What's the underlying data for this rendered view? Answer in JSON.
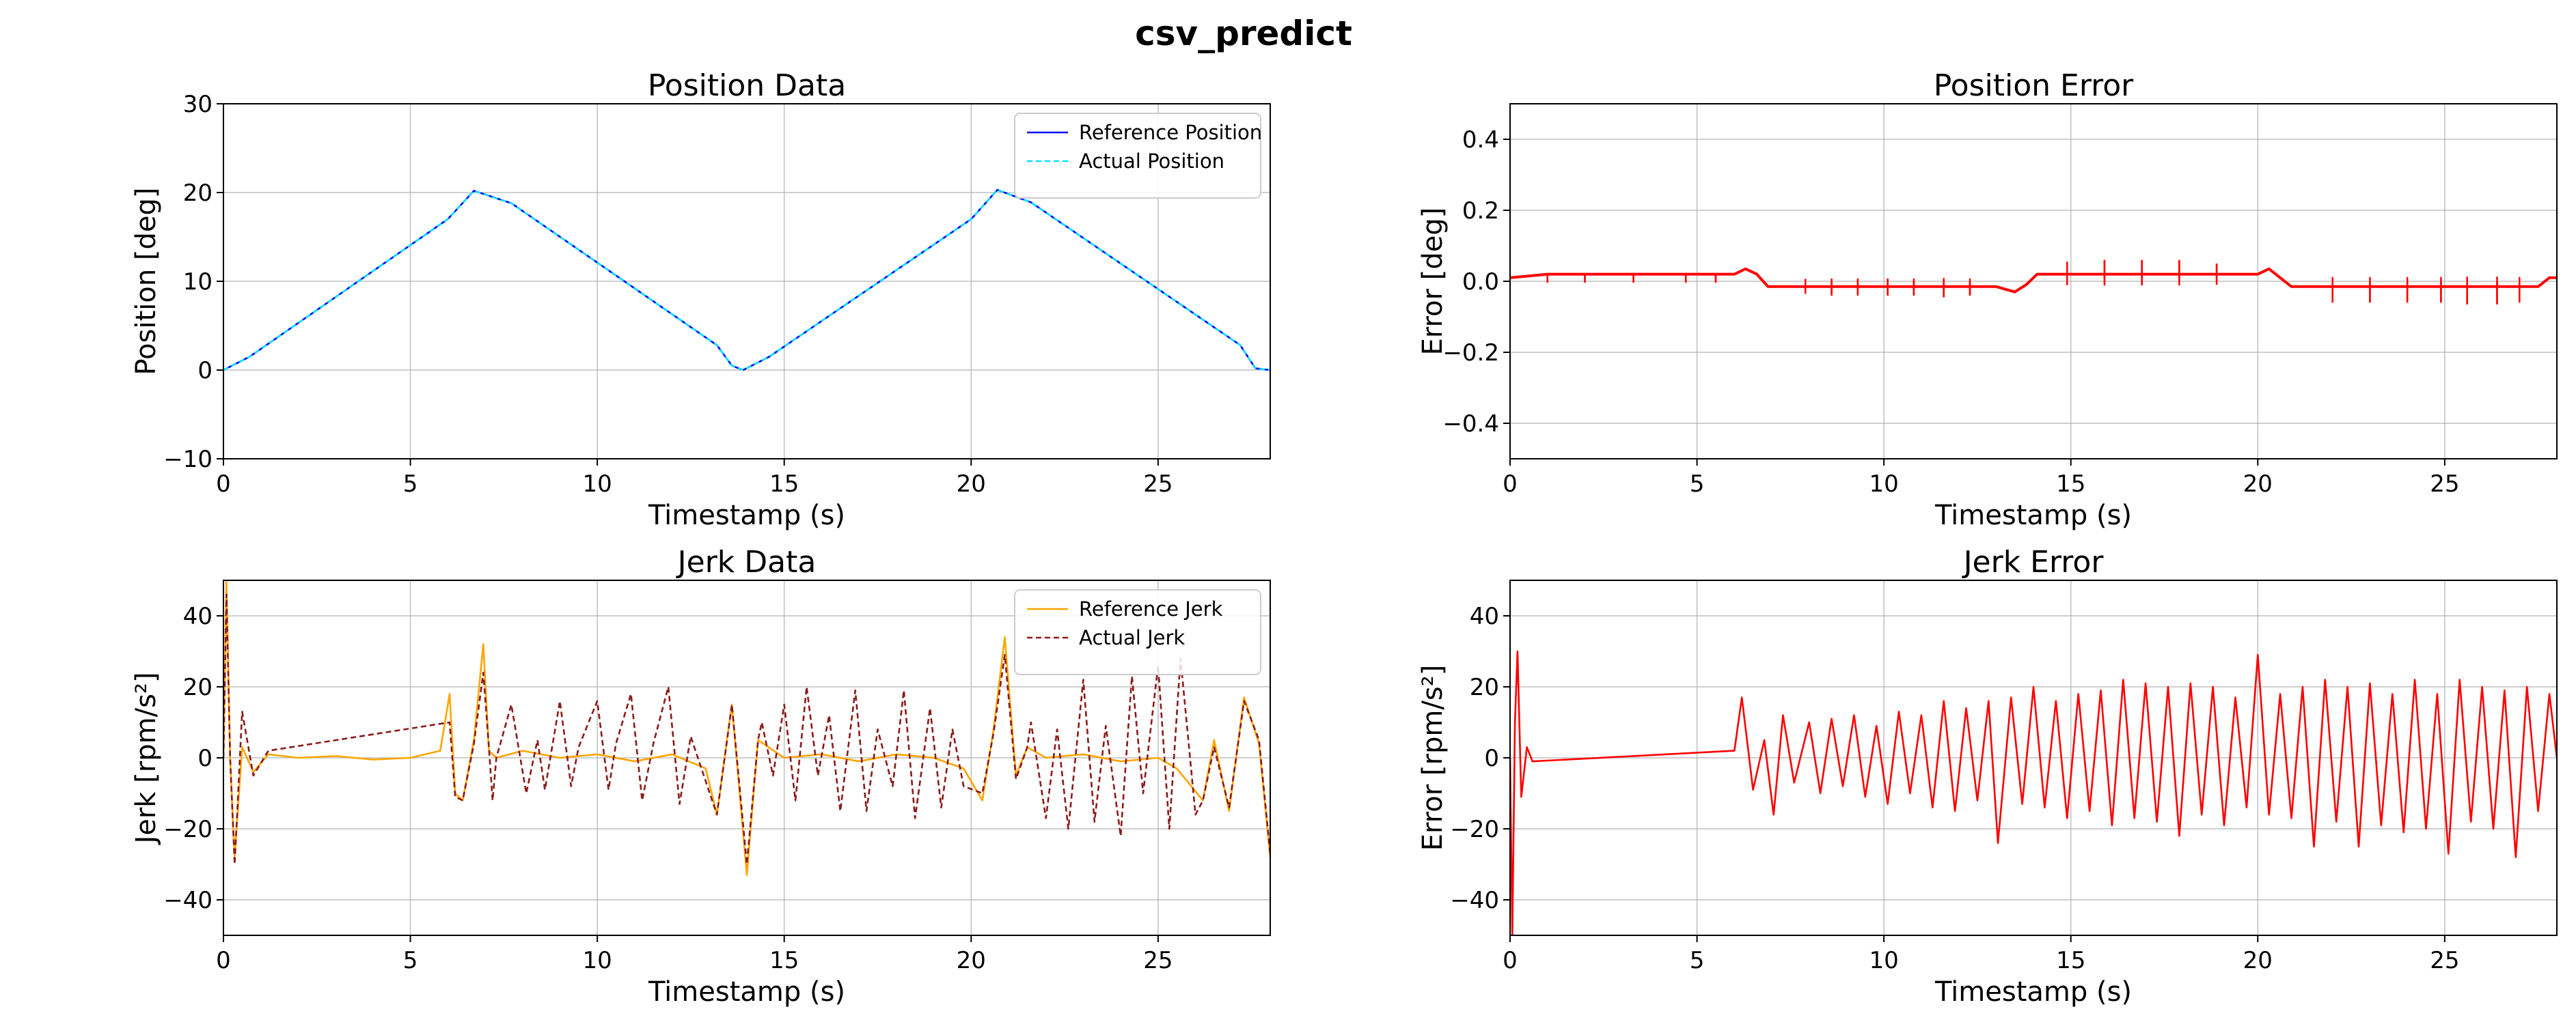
{
  "suptitle": "csv_predict",
  "chart_data": [
    {
      "id": "position-data",
      "type": "line",
      "title": "Position Data",
      "xlabel": "Timestamp (s)",
      "ylabel": "Position [deg]",
      "xlim": [
        0,
        28
      ],
      "ylim": [
        -10,
        30
      ],
      "xticks": [
        0,
        5,
        10,
        15,
        20,
        25
      ],
      "yticks": [
        -10,
        0,
        10,
        20,
        30
      ],
      "grid": true,
      "legend": "top-right",
      "series": [
        {
          "name": "Reference Position",
          "color": "#0000ff",
          "style": "solid",
          "x": [
            0,
            0.7,
            6,
            6.7,
            7.7,
            13.2,
            13.6,
            13.9,
            14.6,
            20,
            20.7,
            21.6,
            27.2,
            27.6,
            28
          ],
          "y": [
            0,
            1.5,
            17,
            20.2,
            18.8,
            2.8,
            0.5,
            0,
            1.5,
            17,
            20.3,
            18.9,
            2.8,
            0.2,
            0
          ]
        },
        {
          "name": "Actual Position",
          "color": "#00e5ff",
          "style": "dashed",
          "x": [
            0,
            0.7,
            6,
            6.7,
            7.7,
            13.2,
            13.6,
            13.9,
            14.6,
            20,
            20.7,
            21.6,
            27.2,
            27.6,
            28
          ],
          "y": [
            0,
            1.5,
            17,
            20.2,
            18.8,
            2.8,
            0.5,
            0,
            1.5,
            17,
            20.3,
            18.9,
            2.8,
            0.2,
            0
          ]
        }
      ]
    },
    {
      "id": "position-error",
      "type": "line",
      "title": "Position Error",
      "xlabel": "Timestamp (s)",
      "ylabel": "Error [deg]",
      "xlim": [
        0,
        28
      ],
      "ylim": [
        -0.5,
        0.5
      ],
      "xticks": [
        0,
        5,
        10,
        15,
        20,
        25
      ],
      "yticks": [
        -0.4,
        -0.2,
        0.0,
        0.2,
        0.4
      ],
      "grid": true,
      "legend": "none",
      "series": [
        {
          "color": "#ff0000",
          "style": "solid",
          "x": [
            0,
            0.5,
            1,
            6,
            6.3,
            6.6,
            6.9,
            7.2,
            13,
            13.5,
            13.8,
            14.1,
            20,
            20.3,
            20.6,
            20.9,
            27.5,
            27.8,
            28
          ],
          "y": [
            0.01,
            0.015,
            0.02,
            0.02,
            0.035,
            0.02,
            -0.015,
            -0.015,
            -0.015,
            -0.03,
            -0.01,
            0.02,
            0.02,
            0.035,
            0.01,
            -0.015,
            -0.015,
            0.01,
            0.01
          ],
          "spikes_x": [
            1,
            2,
            3.3,
            4.7,
            5.5,
            7.9,
            8.6,
            9.3,
            10.1,
            10.8,
            11.6,
            12.3,
            14.9,
            15.9,
            16.9,
            17.9,
            18.9,
            22,
            23,
            24,
            24.9,
            25.6,
            26.4,
            27
          ],
          "spikes_y": [
            0.02,
            0.02,
            0.02,
            0.02,
            0.02,
            -0.035,
            -0.04,
            -0.04,
            -0.04,
            -0.04,
            -0.045,
            -0.04,
            0.055,
            0.06,
            0.06,
            0.06,
            0.05,
            -0.06,
            -0.06,
            -0.06,
            -0.06,
            -0.065,
            -0.065,
            -0.06
          ]
        }
      ]
    },
    {
      "id": "jerk-data",
      "type": "line",
      "title": "Jerk Data",
      "xlabel": "Timestamp (s)",
      "ylabel": "Jerk [rpm/s²]",
      "xlim": [
        0,
        28
      ],
      "ylim": [
        -50,
        50
      ],
      "xticks": [
        0,
        5,
        10,
        15,
        20,
        25
      ],
      "yticks": [
        -40,
        -20,
        0,
        20,
        40
      ],
      "grid": true,
      "legend": "top-right",
      "series": [
        {
          "name": "Reference Jerk",
          "color": "#ffa500",
          "style": "solid",
          "x": [
            0,
            0.08,
            0.18,
            0.3,
            0.5,
            0.8,
            1.2,
            2,
            3,
            4,
            5,
            5.8,
            6.05,
            6.2,
            6.4,
            6.7,
            6.95,
            7.1,
            7.3,
            8,
            9,
            10,
            11,
            12,
            12.9,
            13.2,
            13.6,
            14,
            14.3,
            15,
            16,
            17,
            18,
            19,
            19.8,
            20.3,
            20.6,
            20.9,
            21.2,
            21.5,
            22,
            23,
            24,
            25,
            25.5,
            26.2,
            26.5,
            26.9,
            27.3,
            27.7,
            28
          ],
          "y": [
            0,
            50,
            0,
            -28,
            3,
            -4,
            1,
            0,
            0.5,
            -0.5,
            0,
            2,
            18,
            -10,
            -12,
            5,
            32,
            2,
            0,
            2,
            0,
            1,
            -1,
            1,
            -3,
            -16,
            15,
            -33,
            5,
            0,
            1,
            -1,
            1,
            0,
            -3,
            -12,
            8,
            34,
            -5,
            3,
            0,
            1,
            -1,
            0,
            -3,
            -12,
            5,
            -15,
            17,
            4,
            -28
          ]
        },
        {
          "name": "Actual Jerk",
          "color": "#8b1a1a",
          "style": "dashed",
          "x": [
            0,
            0.08,
            0.18,
            0.3,
            0.5,
            0.8,
            1.2,
            6.05,
            6.2,
            6.4,
            6.7,
            6.95,
            7.1,
            7.3,
            13.2,
            13.6,
            14,
            14.3,
            20.3,
            20.6,
            20.9,
            21.2,
            21.5,
            26.2,
            26.5,
            26.9,
            27.3,
            27.7,
            28
          ],
          "y": [
            0,
            46,
            0,
            -30,
            13,
            -5,
            2,
            10,
            -11,
            -12,
            4,
            24,
            3,
            0,
            -16,
            15,
            -30,
            5,
            -10,
            7,
            29,
            -6,
            3,
            -12,
            3,
            -14,
            16,
            5,
            -27
          ],
          "osc_x": [
            7.2,
            7.7,
            8.1,
            8.4,
            8.6,
            9.0,
            9.3,
            9.5,
            10.0,
            10.3,
            10.5,
            10.9,
            11.2,
            11.5,
            11.9,
            12.2,
            12.5,
            14.4,
            14.7,
            15.0,
            15.3,
            15.6,
            15.9,
            16.2,
            16.5,
            16.9,
            17.2,
            17.5,
            17.9,
            18.2,
            18.5,
            18.9,
            19.2,
            19.5,
            19.8,
            21.6,
            22.0,
            22.3,
            22.6,
            23.0,
            23.3,
            23.6,
            24.0,
            24.3,
            24.6,
            25.0,
            25.3,
            25.6,
            26.0
          ],
          "osc_y": [
            -12,
            15,
            -10,
            5,
            -9,
            16,
            -8,
            3,
            16,
            -9,
            4,
            18,
            -12,
            4,
            20,
            -13,
            6,
            10,
            -5,
            15,
            -12,
            20,
            -5,
            12,
            -15,
            19,
            -15,
            8,
            -8,
            19,
            -17,
            14,
            -14,
            8,
            -8,
            10,
            -17,
            8,
            -20,
            22,
            -18,
            9,
            -22,
            23,
            -10,
            26,
            -20,
            28,
            -16
          ]
        }
      ]
    },
    {
      "id": "jerk-error",
      "type": "line",
      "title": "Jerk Error",
      "xlabel": "Timestamp (s)",
      "ylabel": "Error [rpm/s²]",
      "xlim": [
        0,
        28
      ],
      "ylim": [
        -50,
        50
      ],
      "xticks": [
        0,
        5,
        10,
        15,
        20,
        25
      ],
      "yticks": [
        -40,
        -20,
        0,
        20,
        40
      ],
      "grid": true,
      "legend": "none",
      "series": [
        {
          "color": "#ff0000",
          "style": "solid",
          "x": [
            0,
            0.06,
            0.13,
            0.2,
            0.3,
            0.45,
            0.6,
            6.0,
            6.2,
            6.5,
            6.8,
            7.05,
            7.3,
            7.6,
            8.0,
            8.3,
            8.6,
            8.9,
            9.2,
            9.5,
            9.8,
            10.1,
            10.4,
            10.7,
            11.0,
            11.3,
            11.6,
            11.9,
            12.2,
            12.5,
            12.8,
            13.05,
            13.4,
            13.7,
            14.0,
            14.3,
            14.6,
            14.9,
            15.2,
            15.5,
            15.8,
            16.1,
            16.4,
            16.7,
            17.0,
            17.3,
            17.6,
            17.9,
            18.2,
            18.5,
            18.8,
            19.1,
            19.4,
            19.7,
            20.0,
            20.3,
            20.6,
            20.9,
            21.2,
            21.5,
            21.8,
            22.1,
            22.4,
            22.7,
            23.0,
            23.3,
            23.6,
            23.9,
            24.2,
            24.5,
            24.8,
            25.1,
            25.4,
            25.7,
            26.0,
            26.3,
            26.6,
            26.9,
            27.2,
            27.5,
            27.8,
            28
          ],
          "y": [
            0,
            -50,
            10,
            30,
            -11,
            3,
            -1,
            2,
            17,
            -9,
            5,
            -16,
            12,
            -7,
            10,
            -10,
            11,
            -8,
            12,
            -11,
            9,
            -13,
            13,
            -10,
            12,
            -14,
            16,
            -15,
            14,
            -12,
            16,
            -24,
            17,
            -13,
            20,
            -14,
            16,
            -17,
            18,
            -15,
            19,
            -19,
            22,
            -17,
            21,
            -18,
            20,
            -22,
            21,
            -16,
            20,
            -19,
            17,
            -14,
            29,
            -16,
            18,
            -17,
            20,
            -25,
            22,
            -18,
            20,
            -25,
            21,
            -19,
            18,
            -21,
            22,
            -20,
            18,
            -27,
            22,
            -18,
            20,
            -20,
            19,
            -28,
            20,
            -15,
            18,
            0
          ]
        }
      ]
    }
  ]
}
